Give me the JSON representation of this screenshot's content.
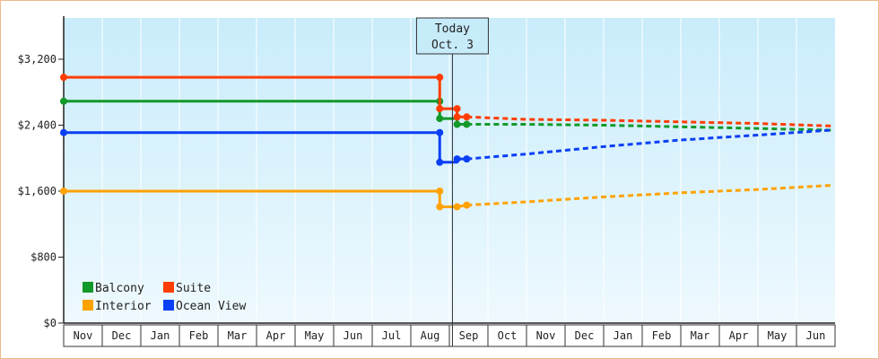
{
  "colors": {
    "Balcony": "#11992a",
    "Suite": "#ff3d00",
    "Interior": "#ffa200",
    "Ocean View": "#0a3ff5",
    "plot_bg_top": "#c9ecfb",
    "plot_bg_bottom": "#eef9fe"
  },
  "today": {
    "line1": "Today",
    "line2": "Oct. 3"
  },
  "chart_data": {
    "type": "line",
    "title": "",
    "xlabel": "",
    "ylabel": "",
    "ylim": [
      0,
      3700
    ],
    "yticks": [
      0,
      800,
      1600,
      2400,
      3200
    ],
    "ytick_labels": [
      "$0",
      "$800",
      "$1,600",
      "$2,400",
      "$3,200"
    ],
    "months": [
      "Nov",
      "Dec",
      "Jan",
      "Feb",
      "Mar",
      "Apr",
      "May",
      "Jun",
      "Jul",
      "Aug",
      "Sep",
      "Oct",
      "Nov",
      "Dec",
      "Jan",
      "Feb",
      "Mar",
      "Apr",
      "May",
      "Jun"
    ],
    "today_month_index": 10.08,
    "legend": {
      "placement": "bottom-left",
      "entries": [
        "Balcony",
        "Suite",
        "Interior",
        "Ocean View"
      ]
    },
    "series": [
      {
        "name": "Balcony",
        "historical": [
          [
            0,
            2690
          ],
          [
            9.75,
            2690
          ],
          [
            9.75,
            2480
          ],
          [
            10.2,
            2480
          ],
          [
            10.2,
            2410
          ],
          [
            10.45,
            2410
          ]
        ],
        "markers": [
          [
            0,
            2690
          ],
          [
            9.75,
            2690
          ],
          [
            9.75,
            2480
          ],
          [
            10.2,
            2410
          ],
          [
            10.45,
            2410
          ]
        ],
        "forecast": [
          [
            10.45,
            2410
          ],
          [
            12,
            2410
          ],
          [
            14,
            2400
          ],
          [
            16,
            2380
          ],
          [
            18,
            2360
          ],
          [
            19.9,
            2340
          ]
        ]
      },
      {
        "name": "Suite",
        "historical": [
          [
            0,
            2980
          ],
          [
            9.75,
            2980
          ],
          [
            9.75,
            2600
          ],
          [
            10.2,
            2600
          ],
          [
            10.2,
            2500
          ],
          [
            10.45,
            2500
          ]
        ],
        "markers": [
          [
            0,
            2980
          ],
          [
            9.75,
            2980
          ],
          [
            9.75,
            2600
          ],
          [
            10.2,
            2600
          ],
          [
            10.2,
            2500
          ],
          [
            10.45,
            2500
          ]
        ],
        "forecast": [
          [
            10.45,
            2500
          ],
          [
            12,
            2470
          ],
          [
            14,
            2460
          ],
          [
            16,
            2440
          ],
          [
            18,
            2420
          ],
          [
            19.9,
            2390
          ]
        ]
      },
      {
        "name": "Interior",
        "historical": [
          [
            0,
            1600
          ],
          [
            9.75,
            1600
          ],
          [
            9.75,
            1410
          ],
          [
            10.2,
            1410
          ],
          [
            10.45,
            1430
          ]
        ],
        "markers": [
          [
            0,
            1600
          ],
          [
            9.75,
            1600
          ],
          [
            9.75,
            1410
          ],
          [
            10.2,
            1410
          ],
          [
            10.45,
            1430
          ]
        ],
        "forecast": [
          [
            10.45,
            1430
          ],
          [
            12,
            1470
          ],
          [
            14,
            1530
          ],
          [
            16,
            1580
          ],
          [
            18,
            1620
          ],
          [
            19.9,
            1670
          ]
        ]
      },
      {
        "name": "Ocean View",
        "historical": [
          [
            0,
            2310
          ],
          [
            9.75,
            2310
          ],
          [
            9.75,
            1950
          ],
          [
            10.2,
            1950
          ],
          [
            10.2,
            1990
          ],
          [
            10.45,
            1990
          ]
        ],
        "markers": [
          [
            0,
            2310
          ],
          [
            9.75,
            2310
          ],
          [
            9.75,
            1950
          ],
          [
            10.2,
            1990
          ],
          [
            10.45,
            1990
          ]
        ],
        "forecast": [
          [
            10.45,
            1990
          ],
          [
            12,
            2050
          ],
          [
            14,
            2140
          ],
          [
            16,
            2220
          ],
          [
            18,
            2280
          ],
          [
            19.9,
            2340
          ]
        ]
      }
    ]
  }
}
